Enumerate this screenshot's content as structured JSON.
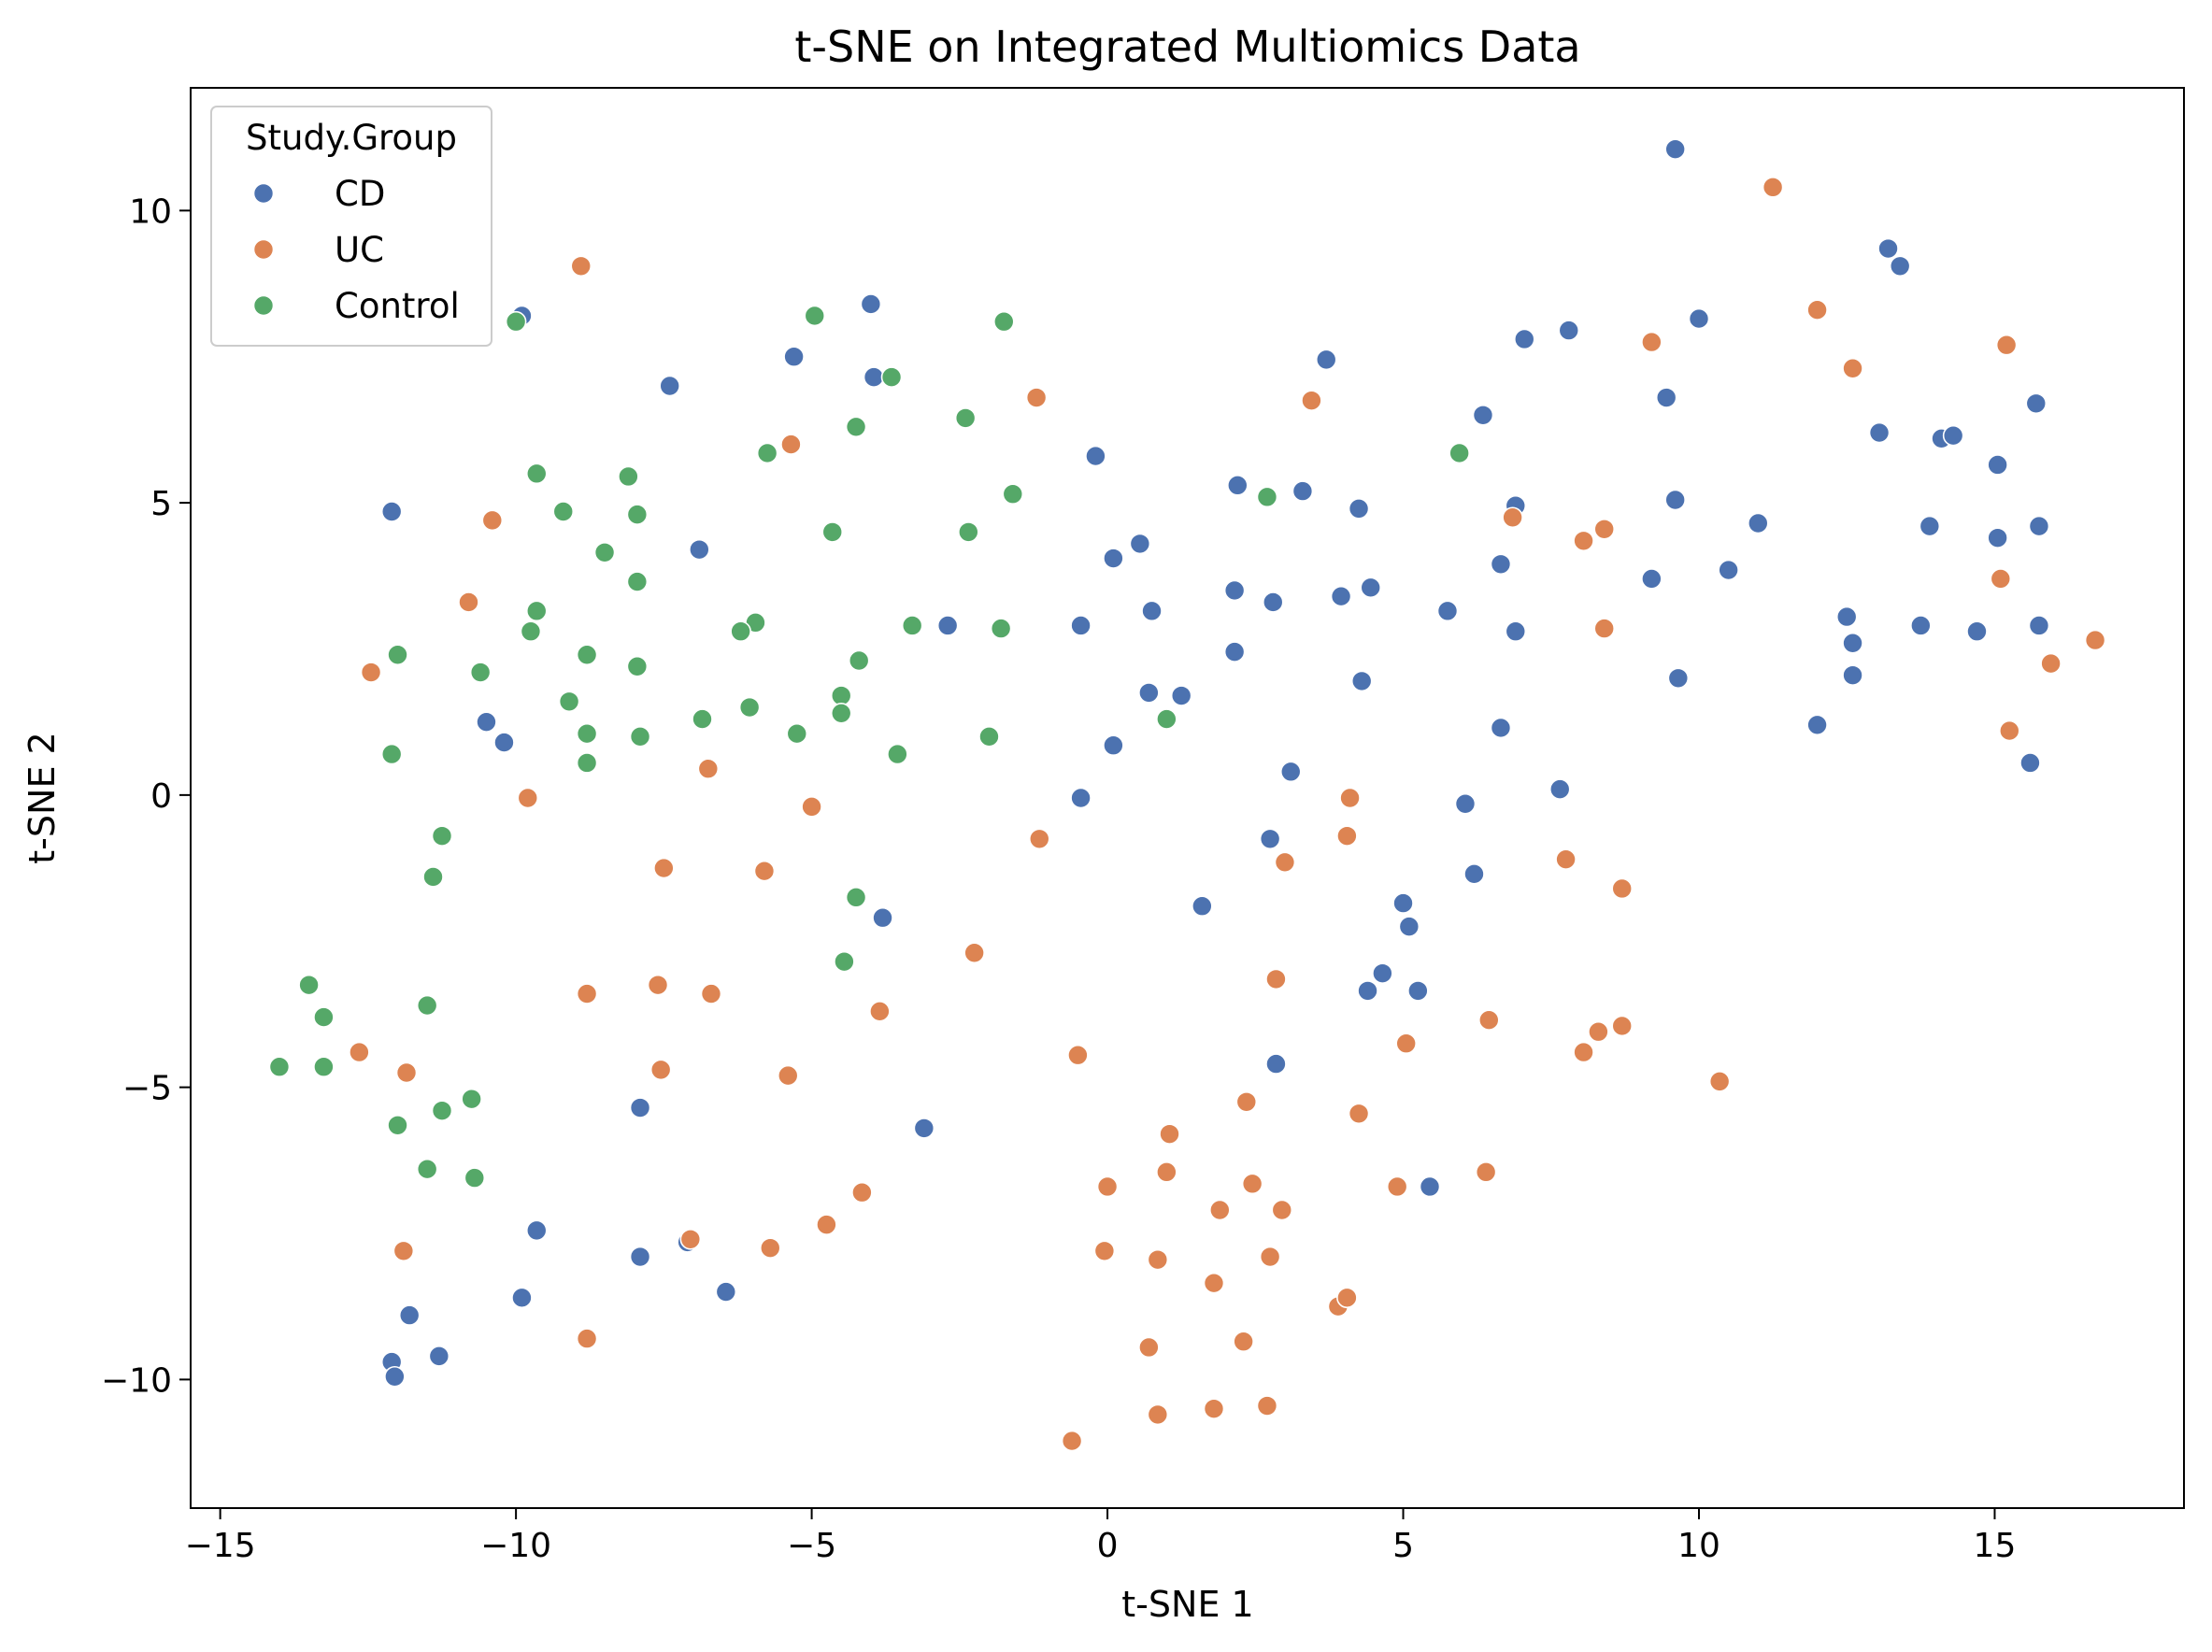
{
  "chart_data": {
    "type": "scatter",
    "title": "t-SNE on Integrated Multiomics Data",
    "xlabel": "t-SNE 1",
    "ylabel": "t-SNE 2",
    "xlim": [
      -15.5,
      18.2
    ],
    "ylim": [
      -12.2,
      12.1
    ],
    "xticks": [
      -15,
      -10,
      -5,
      0,
      5,
      10,
      15
    ],
    "xtick_labels": [
      "−15",
      "−10",
      "−5",
      "0",
      "5",
      "10",
      "15"
    ],
    "yticks": [
      -10,
      -5,
      0,
      5,
      10
    ],
    "ytick_labels": [
      "−10",
      "−5",
      "0",
      "5",
      "10"
    ],
    "grid": false,
    "legend": {
      "title": "Study.Group",
      "placement": "top-left"
    },
    "series": [
      {
        "name": "CD",
        "color": "#4c72b0",
        "points": [
          [
            -12.1,
            4.85
          ],
          [
            -9.9,
            8.2
          ],
          [
            -7.4,
            7.0
          ],
          [
            -5.3,
            7.5
          ],
          [
            -4.0,
            8.4
          ],
          [
            -3.95,
            7.15
          ],
          [
            -6.9,
            4.2
          ],
          [
            -10.5,
            1.25
          ],
          [
            -10.2,
            0.9
          ],
          [
            -3.8,
            -2.1
          ],
          [
            -7.9,
            -5.35
          ],
          [
            -3.1,
            -5.7
          ],
          [
            -9.65,
            -7.45
          ],
          [
            -7.9,
            -7.9
          ],
          [
            -7.1,
            -7.65
          ],
          [
            -6.45,
            -8.5
          ],
          [
            -9.9,
            -8.6
          ],
          [
            -11.8,
            -8.9
          ],
          [
            -12.1,
            -9.7
          ],
          [
            -12.05,
            -9.95
          ],
          [
            -11.3,
            -9.6
          ],
          [
            -2.7,
            2.9
          ],
          [
            -0.45,
            2.9
          ],
          [
            0.1,
            4.05
          ],
          [
            0.55,
            4.3
          ],
          [
            -0.2,
            5.8
          ],
          [
            0.75,
            3.15
          ],
          [
            0.7,
            1.75
          ],
          [
            1.25,
            1.7
          ],
          [
            0.1,
            0.85
          ],
          [
            -0.45,
            -0.05
          ],
          [
            1.6,
            -1.9
          ],
          [
            2.2,
            5.3
          ],
          [
            2.15,
            3.5
          ],
          [
            2.15,
            2.45
          ],
          [
            2.8,
            3.3
          ],
          [
            3.3,
            5.2
          ],
          [
            3.7,
            7.45
          ],
          [
            3.95,
            3.4
          ],
          [
            4.25,
            4.9
          ],
          [
            4.45,
            3.55
          ],
          [
            4.3,
            1.95
          ],
          [
            3.1,
            0.4
          ],
          [
            2.75,
            -0.75
          ],
          [
            2.85,
            -4.6
          ],
          [
            4.65,
            -3.05
          ],
          [
            4.4,
            -3.35
          ],
          [
            5.0,
            -1.85
          ],
          [
            5.1,
            -2.25
          ],
          [
            5.25,
            -3.35
          ],
          [
            5.45,
            -6.7
          ],
          [
            5.75,
            3.15
          ],
          [
            6.05,
            -0.15
          ],
          [
            6.2,
            -1.35
          ],
          [
            6.35,
            6.5
          ],
          [
            6.65,
            3.95
          ],
          [
            6.65,
            1.15
          ],
          [
            6.9,
            4.95
          ],
          [
            6.9,
            2.8
          ],
          [
            7.05,
            7.8
          ],
          [
            7.65,
            0.1
          ],
          [
            7.8,
            7.95
          ],
          [
            9.2,
            3.7
          ],
          [
            9.45,
            6.8
          ],
          [
            9.6,
            11.05
          ],
          [
            9.6,
            5.05
          ],
          [
            9.65,
            2.0
          ],
          [
            10.0,
            8.15
          ],
          [
            10.5,
            3.85
          ],
          [
            11.0,
            4.65
          ],
          [
            12.0,
            1.2
          ],
          [
            12.5,
            3.05
          ],
          [
            12.6,
            2.6
          ],
          [
            12.6,
            2.05
          ],
          [
            13.05,
            6.2
          ],
          [
            13.2,
            9.35
          ],
          [
            13.4,
            9.05
          ],
          [
            13.9,
            4.6
          ],
          [
            13.75,
            2.9
          ],
          [
            14.1,
            6.1
          ],
          [
            14.3,
            6.15
          ],
          [
            14.7,
            2.8
          ],
          [
            15.05,
            5.65
          ],
          [
            15.05,
            4.4
          ],
          [
            15.6,
            0.55
          ],
          [
            15.7,
            6.7
          ],
          [
            15.75,
            4.6
          ],
          [
            15.75,
            2.9
          ]
        ]
      },
      {
        "name": "UC",
        "color": "#dd8452",
        "points": [
          [
            -12.45,
            2.1
          ],
          [
            -10.8,
            3.3
          ],
          [
            -10.4,
            4.7
          ],
          [
            -8.9,
            9.05
          ],
          [
            -9.8,
            -0.05
          ],
          [
            -5.35,
            6.0
          ],
          [
            -6.75,
            0.45
          ],
          [
            -5.0,
            -0.2
          ],
          [
            -7.5,
            -1.25
          ],
          [
            -5.8,
            -1.3
          ],
          [
            -8.8,
            -3.4
          ],
          [
            -7.6,
            -3.25
          ],
          [
            -6.7,
            -3.4
          ],
          [
            -3.85,
            -3.7
          ],
          [
            -2.25,
            -2.7
          ],
          [
            -1.2,
            6.8
          ],
          [
            -1.15,
            -0.75
          ],
          [
            -12.65,
            -4.4
          ],
          [
            -11.85,
            -4.75
          ],
          [
            -7.55,
            -4.7
          ],
          [
            -5.4,
            -4.8
          ],
          [
            -11.9,
            -7.8
          ],
          [
            -7.05,
            -7.6
          ],
          [
            -5.7,
            -7.75
          ],
          [
            -4.75,
            -7.35
          ],
          [
            -4.15,
            -6.8
          ],
          [
            -8.8,
            -9.3
          ],
          [
            -0.5,
            -4.45
          ],
          [
            0.0,
            -6.7
          ],
          [
            1.0,
            -6.45
          ],
          [
            1.05,
            -5.8
          ],
          [
            -0.05,
            -7.8
          ],
          [
            0.85,
            -7.95
          ],
          [
            1.9,
            -7.1
          ],
          [
            2.35,
            -5.25
          ],
          [
            2.45,
            -6.65
          ],
          [
            2.95,
            -7.1
          ],
          [
            2.75,
            -7.9
          ],
          [
            1.8,
            -8.35
          ],
          [
            0.7,
            -9.45
          ],
          [
            0.85,
            -10.6
          ],
          [
            1.8,
            -10.5
          ],
          [
            2.3,
            -9.35
          ],
          [
            2.7,
            -10.45
          ],
          [
            -0.6,
            -11.05
          ],
          [
            3.9,
            -8.75
          ],
          [
            4.05,
            -8.6
          ],
          [
            2.85,
            -3.15
          ],
          [
            3.0,
            -1.15
          ],
          [
            3.45,
            6.75
          ],
          [
            4.05,
            -0.7
          ],
          [
            4.1,
            -0.05
          ],
          [
            4.25,
            -5.45
          ],
          [
            4.9,
            -6.7
          ],
          [
            5.05,
            -4.25
          ],
          [
            6.4,
            -6.45
          ],
          [
            6.45,
            -3.85
          ],
          [
            6.85,
            4.75
          ],
          [
            7.75,
            -1.1
          ],
          [
            8.05,
            4.35
          ],
          [
            8.4,
            4.55
          ],
          [
            8.4,
            2.85
          ],
          [
            8.7,
            -1.6
          ],
          [
            8.05,
            -4.4
          ],
          [
            8.3,
            -4.05
          ],
          [
            8.7,
            -3.95
          ],
          [
            9.2,
            7.75
          ],
          [
            10.35,
            -4.9
          ],
          [
            11.25,
            10.4
          ],
          [
            12.0,
            8.3
          ],
          [
            12.6,
            7.3
          ],
          [
            15.1,
            3.7
          ],
          [
            15.2,
            7.7
          ],
          [
            15.25,
            1.1
          ],
          [
            15.95,
            2.25
          ],
          [
            16.7,
            2.65
          ]
        ]
      },
      {
        "name": "Control",
        "color": "#55a868",
        "points": [
          [
            -10.0,
            8.1
          ],
          [
            -9.65,
            5.5
          ],
          [
            -9.2,
            4.85
          ],
          [
            -8.5,
            4.15
          ],
          [
            -8.1,
            5.45
          ],
          [
            -7.95,
            4.8
          ],
          [
            -7.95,
            3.65
          ],
          [
            -9.65,
            3.15
          ],
          [
            -9.75,
            2.8
          ],
          [
            -10.6,
            2.1
          ],
          [
            -12.0,
            2.4
          ],
          [
            -12.1,
            0.7
          ],
          [
            -8.8,
            2.4
          ],
          [
            -7.95,
            2.2
          ],
          [
            -9.1,
            1.6
          ],
          [
            -8.8,
            1.05
          ],
          [
            -8.8,
            0.55
          ],
          [
            -7.9,
            1.0
          ],
          [
            -6.85,
            1.3
          ],
          [
            -5.95,
            2.95
          ],
          [
            -6.2,
            2.8
          ],
          [
            -6.05,
            1.5
          ],
          [
            -5.25,
            1.05
          ],
          [
            -4.95,
            8.2
          ],
          [
            -5.75,
            5.85
          ],
          [
            -4.25,
            6.3
          ],
          [
            -3.65,
            7.15
          ],
          [
            -4.65,
            4.5
          ],
          [
            -4.2,
            2.3
          ],
          [
            -4.5,
            1.7
          ],
          [
            -4.5,
            1.4
          ],
          [
            -3.55,
            0.7
          ],
          [
            -3.3,
            2.9
          ],
          [
            -2.4,
            6.45
          ],
          [
            -2.35,
            4.5
          ],
          [
            -1.75,
            8.1
          ],
          [
            -1.6,
            5.15
          ],
          [
            -1.8,
            2.85
          ],
          [
            -2.0,
            1.0
          ],
          [
            -4.25,
            -1.75
          ],
          [
            -4.45,
            -2.85
          ],
          [
            -11.25,
            -0.7
          ],
          [
            -11.4,
            -1.4
          ],
          [
            -13.5,
            -3.25
          ],
          [
            -13.25,
            -3.8
          ],
          [
            -11.5,
            -3.6
          ],
          [
            -14.0,
            -4.65
          ],
          [
            -13.25,
            -4.65
          ],
          [
            -10.75,
            -5.2
          ],
          [
            -11.25,
            -5.4
          ],
          [
            -12.0,
            -5.65
          ],
          [
            -11.5,
            -6.4
          ],
          [
            -10.7,
            -6.55
          ],
          [
            1.0,
            1.3
          ],
          [
            2.7,
            5.1
          ],
          [
            5.95,
            5.85
          ]
        ]
      }
    ]
  }
}
